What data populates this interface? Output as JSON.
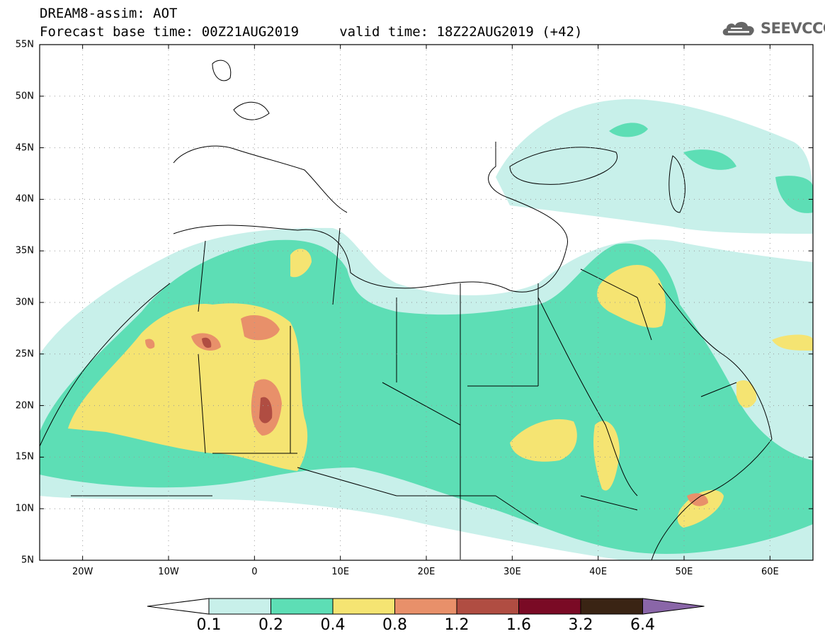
{
  "title": {
    "line1": "DREAM8-assim: AOT",
    "line2": "Forecast base time: 00Z21AUG2019     valid time: 18Z22AUG2019 (+42)"
  },
  "brand": {
    "name": "SEEVCCC",
    "icon": "cloud-logo-icon"
  },
  "axes": {
    "lat_labels": [
      "55N",
      "50N",
      "45N",
      "40N",
      "35N",
      "30N",
      "25N",
      "20N",
      "15N",
      "10N",
      "5N"
    ],
    "lon_labels": [
      "20W",
      "10W",
      "0",
      "10E",
      "20E",
      "30E",
      "40E",
      "50E",
      "60E"
    ],
    "lon_range": [
      -25,
      65
    ],
    "lat_range": [
      5,
      55
    ],
    "grid": "dotted"
  },
  "colorbar": {
    "labels": [
      "0.1",
      "0.2",
      "0.4",
      "0.8",
      "1.2",
      "1.6",
      "3.2",
      "6.4"
    ],
    "colors": [
      "#ffffff",
      "#c8f0ea",
      "#5ddeb5",
      "#f5e472",
      "#e8906a",
      "#b04d42",
      "#7a0a25",
      "#3a2414",
      "#8a66a8"
    ]
  }
}
